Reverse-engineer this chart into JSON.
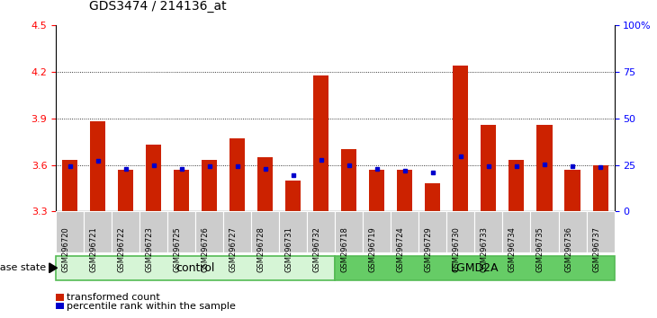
{
  "title": "GDS3474 / 214136_at",
  "samples": [
    "GSM296720",
    "GSM296721",
    "GSM296722",
    "GSM296723",
    "GSM296725",
    "GSM296726",
    "GSM296727",
    "GSM296728",
    "GSM296731",
    "GSM296732",
    "GSM296718",
    "GSM296719",
    "GSM296724",
    "GSM296729",
    "GSM296730",
    "GSM296733",
    "GSM296734",
    "GSM296735",
    "GSM296736",
    "GSM296737"
  ],
  "transformed_count": [
    3.63,
    3.88,
    3.57,
    3.73,
    3.57,
    3.63,
    3.77,
    3.65,
    3.5,
    4.18,
    3.7,
    3.57,
    3.57,
    3.48,
    4.24,
    3.86,
    3.63,
    3.86,
    3.57,
    3.6
  ],
  "percentile_rank": [
    3.595,
    3.625,
    3.573,
    3.598,
    3.573,
    3.595,
    3.595,
    3.573,
    3.535,
    3.635,
    3.598,
    3.573,
    3.565,
    3.552,
    3.658,
    3.595,
    3.595,
    3.605,
    3.595,
    3.585
  ],
  "group_labels": [
    "control",
    "LGMD2A"
  ],
  "group_counts": [
    10,
    10
  ],
  "bar_color": "#cc2200",
  "dot_color": "#0000cc",
  "ylim_left": [
    3.3,
    4.5
  ],
  "ylim_right": [
    0,
    100
  ],
  "yticks_left": [
    3.3,
    3.6,
    3.9,
    4.2,
    4.5
  ],
  "yticks_right": [
    0,
    25,
    50,
    75,
    100
  ],
  "ytick_labels_right": [
    "0",
    "25",
    "50",
    "75",
    "100%"
  ],
  "grid_lines": [
    3.6,
    3.9,
    4.2
  ],
  "legend_items": [
    "transformed count",
    "percentile rank within the sample"
  ],
  "disease_state_label": "disease state",
  "bar_bottom": 3.3,
  "ctrl_color_light": "#d6f5d6",
  "lgmd_color": "#66cc66",
  "tick_box_color": "#cccccc"
}
